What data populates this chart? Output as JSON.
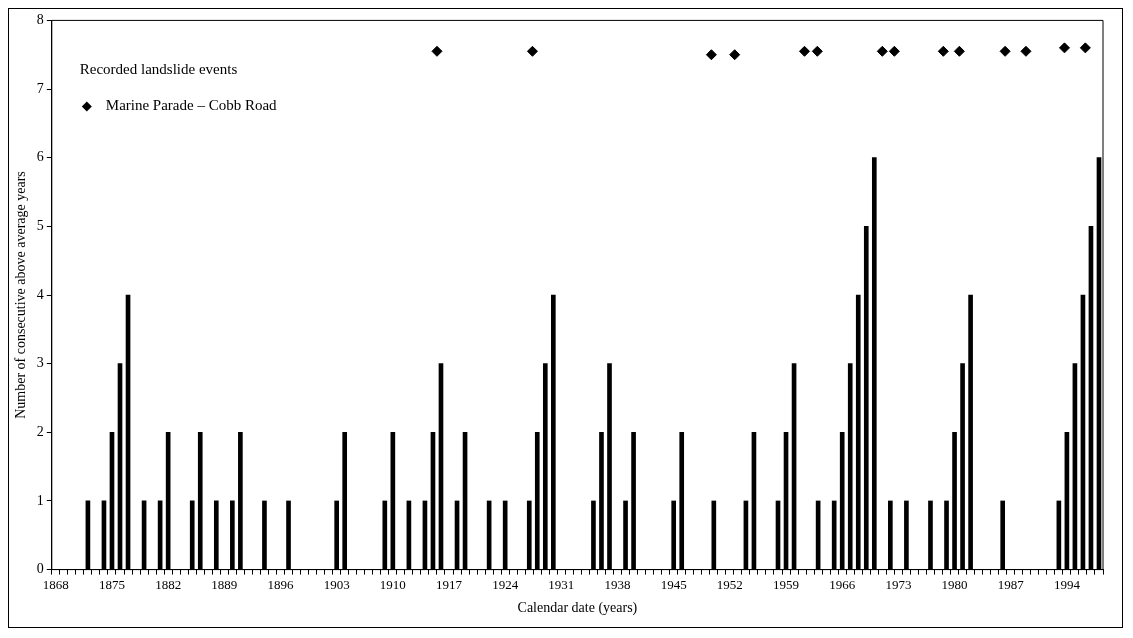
{
  "chart_data": {
    "type": "bar",
    "xlabel": "Calendar date (years)",
    "ylabel": "Number of consecutive above average years",
    "legend_title": "Recorded landslide events",
    "legend": "top left",
    "grid": false,
    "xlim": [
      1867.5,
      1998.5
    ],
    "ylim": [
      0,
      8
    ],
    "yticks": [
      0,
      1,
      2,
      3,
      4,
      5,
      6,
      7,
      8
    ],
    "xticks": [
      1868,
      {
        "value": 1869,
        "label": null
      },
      {
        "value": 1870,
        "label": null
      },
      {
        "value": 1871,
        "label": null
      },
      {
        "value": 1872,
        "label": null
      },
      {
        "value": 1873,
        "label": null
      },
      {
        "value": 1874,
        "label": null
      },
      1875,
      {
        "value": 1876,
        "label": null
      },
      {
        "value": 1877,
        "label": null
      },
      {
        "value": 1878,
        "label": null
      },
      {
        "value": 1879,
        "label": null
      },
      {
        "value": 1880,
        "label": null
      },
      {
        "value": 1881,
        "label": null
      },
      1882,
      {
        "value": 1883,
        "label": null
      },
      {
        "value": 1884,
        "label": null
      },
      {
        "value": 1885,
        "label": null
      },
      {
        "value": 1886,
        "label": null
      },
      {
        "value": 1887,
        "label": null
      },
      {
        "value": 1888,
        "label": null
      },
      1889,
      {
        "value": 1890,
        "label": null
      },
      {
        "value": 1891,
        "label": null
      },
      {
        "value": 1892,
        "label": null
      },
      {
        "value": 1893,
        "label": null
      },
      {
        "value": 1894,
        "label": null
      },
      {
        "value": 1895,
        "label": null
      },
      1896,
      {
        "value": 1897,
        "label": null
      },
      {
        "value": 1898,
        "label": null
      },
      {
        "value": 1899,
        "label": null
      },
      {
        "value": 1900,
        "label": null
      },
      {
        "value": 1901,
        "label": null
      },
      {
        "value": 1902,
        "label": null
      },
      1903,
      {
        "value": 1904,
        "label": null
      },
      {
        "value": 1905,
        "label": null
      },
      {
        "value": 1906,
        "label": null
      },
      {
        "value": 1907,
        "label": null
      },
      {
        "value": 1908,
        "label": null
      },
      {
        "value": 1909,
        "label": null
      },
      1910,
      {
        "value": 1911,
        "label": null
      },
      {
        "value": 1912,
        "label": null
      },
      {
        "value": 1913,
        "label": null
      },
      {
        "value": 1914,
        "label": null
      },
      {
        "value": 1915,
        "label": null
      },
      {
        "value": 1916,
        "label": null
      },
      1917,
      {
        "value": 1918,
        "label": null
      },
      {
        "value": 1919,
        "label": null
      },
      {
        "value": 1920,
        "label": null
      },
      {
        "value": 1921,
        "label": null
      },
      {
        "value": 1922,
        "label": null
      },
      {
        "value": 1923,
        "label": null
      },
      1924,
      {
        "value": 1925,
        "label": null
      },
      {
        "value": 1926,
        "label": null
      },
      {
        "value": 1927,
        "label": null
      },
      {
        "value": 1928,
        "label": null
      },
      {
        "value": 1929,
        "label": null
      },
      {
        "value": 1930,
        "label": null
      },
      1931,
      {
        "value": 1932,
        "label": null
      },
      {
        "value": 1933,
        "label": null
      },
      {
        "value": 1934,
        "label": null
      },
      {
        "value": 1935,
        "label": null
      },
      {
        "value": 1936,
        "label": null
      },
      {
        "value": 1937,
        "label": null
      },
      1938,
      {
        "value": 1939,
        "label": null
      },
      {
        "value": 1940,
        "label": null
      },
      {
        "value": 1941,
        "label": null
      },
      {
        "value": 1942,
        "label": null
      },
      {
        "value": 1943,
        "label": null
      },
      {
        "value": 1944,
        "label": null
      },
      1945,
      {
        "value": 1946,
        "label": null
      },
      {
        "value": 1947,
        "label": null
      },
      {
        "value": 1948,
        "label": null
      },
      {
        "value": 1949,
        "label": null
      },
      {
        "value": 1950,
        "label": null
      },
      {
        "value": 1951,
        "label": null
      },
      1952,
      {
        "value": 1953,
        "label": null
      },
      {
        "value": 1954,
        "label": null
      },
      {
        "value": 1955,
        "label": null
      },
      {
        "value": 1956,
        "label": null
      },
      {
        "value": 1957,
        "label": null
      },
      {
        "value": 1958,
        "label": null
      },
      1959,
      {
        "value": 1960,
        "label": null
      },
      {
        "value": 1961,
        "label": null
      },
      {
        "value": 1962,
        "label": null
      },
      {
        "value": 1963,
        "label": null
      },
      {
        "value": 1964,
        "label": null
      },
      {
        "value": 1965,
        "label": null
      },
      1966,
      {
        "value": 1967,
        "label": null
      },
      {
        "value": 1968,
        "label": null
      },
      {
        "value": 1969,
        "label": null
      },
      {
        "value": 1970,
        "label": null
      },
      {
        "value": 1971,
        "label": null
      },
      {
        "value": 1972,
        "label": null
      },
      1973,
      {
        "value": 1974,
        "label": null
      },
      {
        "value": 1975,
        "label": null
      },
      {
        "value": 1976,
        "label": null
      },
      {
        "value": 1977,
        "label": null
      },
      {
        "value": 1978,
        "label": null
      },
      {
        "value": 1979,
        "label": null
      },
      1980,
      {
        "value": 1981,
        "label": null
      },
      {
        "value": 1982,
        "label": null
      },
      {
        "value": 1983,
        "label": null
      },
      {
        "value": 1984,
        "label": null
      },
      {
        "value": 1985,
        "label": null
      },
      {
        "value": 1986,
        "label": null
      },
      1987,
      {
        "value": 1988,
        "label": null
      },
      {
        "value": 1989,
        "label": null
      },
      {
        "value": 1990,
        "label": null
      },
      {
        "value": 1991,
        "label": null
      },
      {
        "value": 1992,
        "label": null
      },
      {
        "value": 1993,
        "label": null
      },
      1994,
      {
        "value": 1995,
        "label": null
      },
      {
        "value": 1996,
        "label": null
      },
      {
        "value": 1997,
        "label": null
      },
      {
        "value": 1998,
        "label": null
      }
    ],
    "series": [
      {
        "color": "#000000",
        "x": [
          1872,
          1874,
          1875,
          1876,
          1877,
          1879,
          1881,
          1882,
          1885,
          1886,
          1888,
          1890,
          1891,
          1894,
          1897,
          1903,
          1904,
          1909,
          1910,
          1912,
          1914,
          1915,
          1916,
          1918,
          1919,
          1922,
          1924,
          1927,
          1928,
          1929,
          1930,
          1935,
          1936,
          1937,
          1939,
          1940,
          1945,
          1946,
          1950,
          1954,
          1955,
          1958,
          1959,
          1960,
          1963,
          1965,
          1966,
          1967,
          1968,
          1969,
          1970,
          1972,
          1974,
          1977,
          1979,
          1980,
          1981,
          1982,
          1986,
          1993,
          1994,
          1995,
          1996,
          1997,
          1998
        ],
        "values": [
          1,
          1,
          2,
          3,
          4,
          1,
          1,
          2,
          1,
          2,
          1,
          1,
          2,
          1,
          1,
          1,
          2,
          1,
          2,
          1,
          1,
          2,
          3,
          1,
          2,
          1,
          1,
          1,
          2,
          3,
          4,
          1,
          2,
          3,
          1,
          2,
          1,
          2,
          1,
          1,
          2,
          1,
          2,
          3,
          1,
          1,
          2,
          3,
          4,
          5,
          6,
          1,
          1,
          1,
          1,
          2,
          3,
          4,
          1,
          1,
          2,
          3,
          4,
          5,
          6
        ]
      },
      {
        "type": "scatter",
        "name": "Marine Parade – Cobb Road",
        "color": "#000000",
        "marker": "diamond",
        "x": [
          1915.5,
          1927.4,
          1949.7,
          1952.6,
          1961.3,
          1962.9,
          1971,
          1972.5,
          1978.6,
          1980.6,
          1986.3,
          1988.9,
          1993.7,
          1996.3
        ],
        "values": [
          7.55,
          7.55,
          7.5,
          7.5,
          7.55,
          7.55,
          7.55,
          7.55,
          7.55,
          7.55,
          7.55,
          7.55,
          7.6,
          7.6
        ]
      }
    ]
  }
}
